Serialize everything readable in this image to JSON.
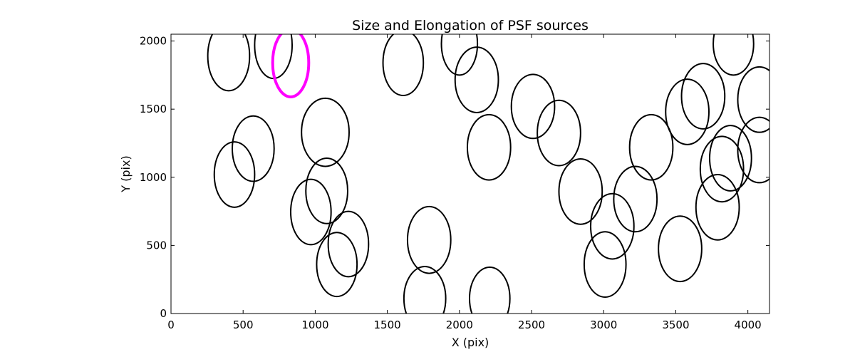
{
  "chart_data": {
    "type": "scatter",
    "title": "Size and Elongation of PSF sources",
    "xlabel": "X (pix)",
    "ylabel": "Y (pix)",
    "xlim": [
      0,
      4150
    ],
    "ylim": [
      0,
      2050
    ],
    "xticks": [
      0,
      500,
      1000,
      1500,
      2000,
      2500,
      3000,
      3500,
      4000
    ],
    "yticks": [
      0,
      500,
      1000,
      1500,
      2000
    ],
    "xtick_labels": [
      "0",
      "500",
      "1000",
      "1500",
      "2000",
      "2500",
      "3000",
      "3500",
      "4000"
    ],
    "ytick_labels": [
      "0",
      "500",
      "1000",
      "1500",
      "2000"
    ],
    "grid": false,
    "legend": "none",
    "ellipse_colors": {
      "default": "#000000",
      "highlight": "#ff00ff"
    },
    "series": [
      {
        "name": "PSF sources",
        "marker": "ellipse",
        "points": [
          {
            "x": 400,
            "y": 1890,
            "a": 255,
            "b": 145,
            "angle": 90
          },
          {
            "x": 710,
            "y": 1970,
            "a": 245,
            "b": 130,
            "angle": 90
          },
          {
            "x": 830,
            "y": 1840,
            "a": 250,
            "b": 125,
            "angle": 90,
            "highlight": true
          },
          {
            "x": 1610,
            "y": 1840,
            "a": 240,
            "b": 140,
            "angle": 90
          },
          {
            "x": 2000,
            "y": 1980,
            "a": 230,
            "b": 125,
            "angle": 90
          },
          {
            "x": 2120,
            "y": 1715,
            "a": 240,
            "b": 150,
            "angle": 90
          },
          {
            "x": 2510,
            "y": 1520,
            "a": 235,
            "b": 150,
            "angle": 90
          },
          {
            "x": 2690,
            "y": 1325,
            "a": 240,
            "b": 150,
            "angle": 90
          },
          {
            "x": 2205,
            "y": 1220,
            "a": 240,
            "b": 150,
            "angle": 90
          },
          {
            "x": 1070,
            "y": 1330,
            "a": 250,
            "b": 165,
            "angle": 90
          },
          {
            "x": 570,
            "y": 1210,
            "a": 240,
            "b": 145,
            "angle": 90
          },
          {
            "x": 440,
            "y": 1020,
            "a": 240,
            "b": 140,
            "angle": 90
          },
          {
            "x": 1080,
            "y": 900,
            "a": 240,
            "b": 145,
            "angle": 90
          },
          {
            "x": 970,
            "y": 745,
            "a": 240,
            "b": 140,
            "angle": 90
          },
          {
            "x": 1230,
            "y": 510,
            "a": 240,
            "b": 140,
            "angle": 90
          },
          {
            "x": 1150,
            "y": 360,
            "a": 235,
            "b": 140,
            "angle": 90
          },
          {
            "x": 1790,
            "y": 540,
            "a": 245,
            "b": 150,
            "angle": 90
          },
          {
            "x": 1760,
            "y": 110,
            "a": 235,
            "b": 145,
            "angle": 90
          },
          {
            "x": 2210,
            "y": 110,
            "a": 230,
            "b": 140,
            "angle": 90
          },
          {
            "x": 2840,
            "y": 895,
            "a": 240,
            "b": 150,
            "angle": 90
          },
          {
            "x": 3220,
            "y": 840,
            "a": 240,
            "b": 150,
            "angle": 90
          },
          {
            "x": 3060,
            "y": 640,
            "a": 240,
            "b": 150,
            "angle": 90
          },
          {
            "x": 3010,
            "y": 360,
            "a": 240,
            "b": 145,
            "angle": 90
          },
          {
            "x": 3330,
            "y": 1220,
            "a": 240,
            "b": 150,
            "angle": 90
          },
          {
            "x": 3530,
            "y": 475,
            "a": 240,
            "b": 150,
            "angle": 90
          },
          {
            "x": 3580,
            "y": 1480,
            "a": 240,
            "b": 150,
            "angle": 90
          },
          {
            "x": 3690,
            "y": 1595,
            "a": 240,
            "b": 150,
            "angle": 90
          },
          {
            "x": 3820,
            "y": 1060,
            "a": 240,
            "b": 150,
            "angle": 90
          },
          {
            "x": 3790,
            "y": 780,
            "a": 240,
            "b": 150,
            "angle": 90
          },
          {
            "x": 3900,
            "y": 1980,
            "a": 230,
            "b": 140,
            "angle": 90
          },
          {
            "x": 4080,
            "y": 1570,
            "a": 240,
            "b": 150,
            "angle": 90
          },
          {
            "x": 4080,
            "y": 1200,
            "a": 240,
            "b": 150,
            "angle": 90
          },
          {
            "x": 3880,
            "y": 1140,
            "a": 240,
            "b": 145,
            "angle": 90
          }
        ]
      }
    ]
  }
}
